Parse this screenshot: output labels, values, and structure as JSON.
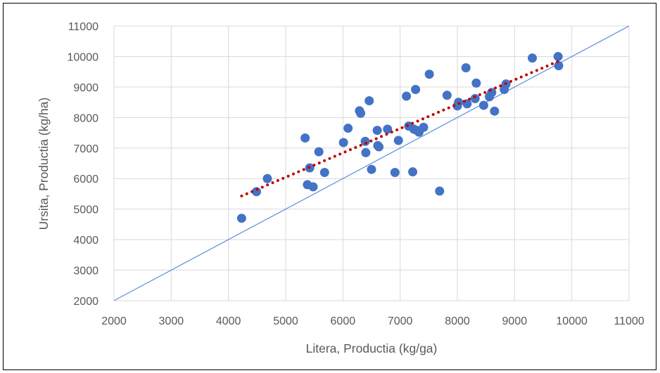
{
  "chart_data": {
    "type": "scatter",
    "xlabel": "Litera, Productia (kg/ga)",
    "ylabel": "Ursita, Productia (kg/ha)",
    "xlim": [
      2000,
      11000
    ],
    "ylim": [
      2000,
      11000
    ],
    "xticks": [
      "2000",
      "3000",
      "4000",
      "5000",
      "6000",
      "7000",
      "8000",
      "9000",
      "10000",
      "11000"
    ],
    "yticks": [
      "2000",
      "3000",
      "4000",
      "5000",
      "6000",
      "7000",
      "8000",
      "9000",
      "10000",
      "11000"
    ],
    "grid": true,
    "legend": "none",
    "marker_color": "#4472C4",
    "series": [
      {
        "points": [
          [
            4230,
            4700
          ],
          [
            4490,
            5570
          ],
          [
            4680,
            6000
          ],
          [
            5340,
            7330
          ],
          [
            5380,
            5800
          ],
          [
            5420,
            6350
          ],
          [
            5480,
            5730
          ],
          [
            5580,
            6880
          ],
          [
            5680,
            6200
          ],
          [
            6010,
            7180
          ],
          [
            6090,
            7650
          ],
          [
            6290,
            8220
          ],
          [
            6310,
            8140
          ],
          [
            6390,
            7220
          ],
          [
            6400,
            6850
          ],
          [
            6460,
            8550
          ],
          [
            6500,
            6300
          ],
          [
            6600,
            7580
          ],
          [
            6610,
            7080
          ],
          [
            6630,
            7040
          ],
          [
            6780,
            7620
          ],
          [
            6910,
            6200
          ],
          [
            6970,
            7250
          ],
          [
            7110,
            8700
          ],
          [
            7150,
            7720
          ],
          [
            7220,
            6220
          ],
          [
            7240,
            7620
          ],
          [
            7270,
            8920
          ],
          [
            7290,
            7580
          ],
          [
            7330,
            7520
          ],
          [
            7410,
            7680
          ],
          [
            7510,
            9420
          ],
          [
            7690,
            5590
          ],
          [
            7820,
            8730
          ],
          [
            8000,
            8380
          ],
          [
            8020,
            8500
          ],
          [
            8150,
            9630
          ],
          [
            8170,
            8450
          ],
          [
            8310,
            8620
          ],
          [
            8330,
            9130
          ],
          [
            8460,
            8400
          ],
          [
            8560,
            8680
          ],
          [
            8600,
            8820
          ],
          [
            8650,
            8210
          ],
          [
            8820,
            8920
          ],
          [
            8850,
            9100
          ],
          [
            9310,
            9950
          ],
          [
            9760,
            10000
          ],
          [
            9770,
            9700
          ]
        ]
      }
    ],
    "reference_line": {
      "from": [
        2000,
        2000
      ],
      "to": [
        11000,
        11000
      ],
      "color": "#5B8FD8"
    },
    "trendline": {
      "from": [
        4230,
        5430
      ],
      "to": [
        9770,
        9850
      ],
      "color": "#C00000",
      "style": "dotted"
    }
  }
}
